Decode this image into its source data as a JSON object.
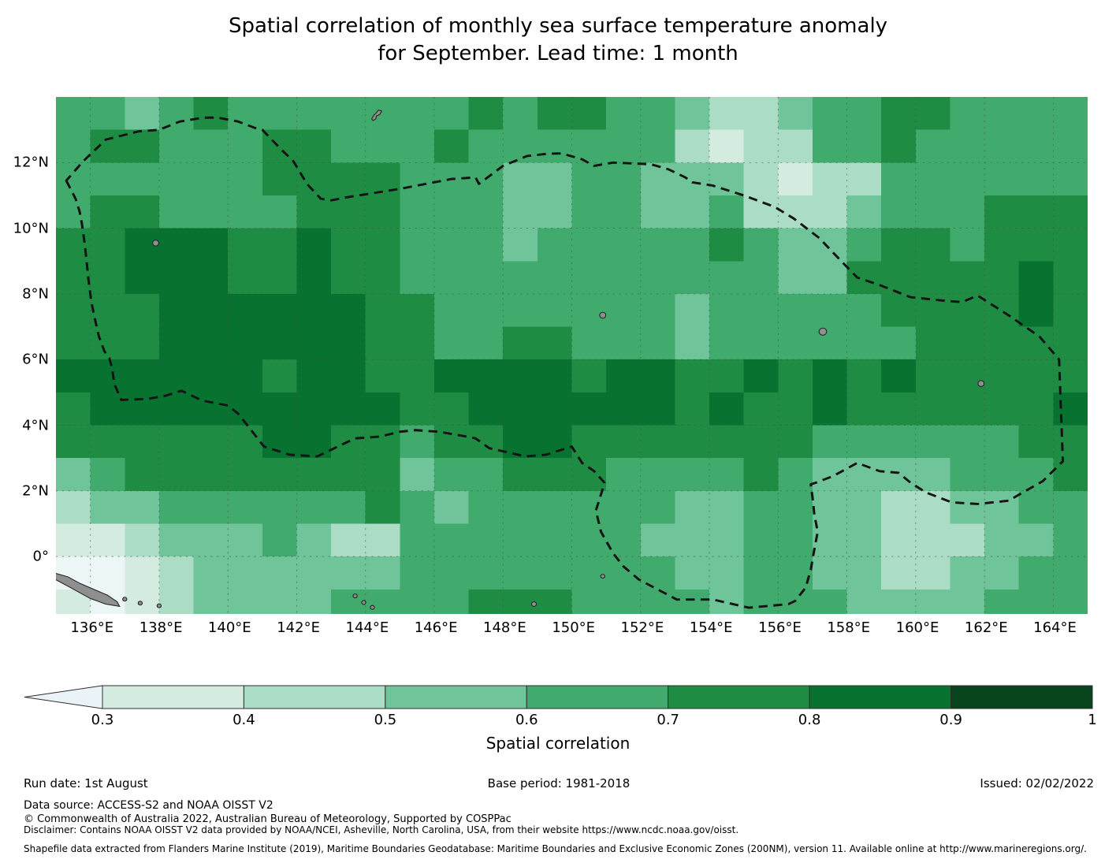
{
  "title": "Spatial correlation of monthly sea surface temperature anomaly\nfor September. Lead time: 1 month",
  "axes": {
    "x_ticks": [
      {
        "label": "136°E",
        "lon": 136
      },
      {
        "label": "138°E",
        "lon": 138
      },
      {
        "label": "140°E",
        "lon": 140
      },
      {
        "label": "142°E",
        "lon": 142
      },
      {
        "label": "144°E",
        "lon": 144
      },
      {
        "label": "146°E",
        "lon": 146
      },
      {
        "label": "148°E",
        "lon": 148
      },
      {
        "label": "150°E",
        "lon": 150
      },
      {
        "label": "152°E",
        "lon": 152
      },
      {
        "label": "154°E",
        "lon": 154
      },
      {
        "label": "156°E",
        "lon": 156
      },
      {
        "label": "158°E",
        "lon": 158
      },
      {
        "label": "160°E",
        "lon": 160
      },
      {
        "label": "162°E",
        "lon": 162
      },
      {
        "label": "164°E",
        "lon": 164
      }
    ],
    "y_ticks": [
      {
        "label": "12°N",
        "lat": 12
      },
      {
        "label": "10°N",
        "lat": 10
      },
      {
        "label": "8°N",
        "lat": 8
      },
      {
        "label": "6°N",
        "lat": 6
      },
      {
        "label": "4°N",
        "lat": 4
      },
      {
        "label": "2°N",
        "lat": 2
      },
      {
        "label": "0°",
        "lat": 0
      }
    ]
  },
  "colorbar": {
    "label": "Spatial correlation",
    "tick_labels": [
      "0.3",
      "0.4",
      "0.5",
      "0.6",
      "0.7",
      "0.8",
      "0.9",
      "1"
    ],
    "under_color": "#e9f3f8",
    "segment_colors": [
      "#d4ecdf",
      "#abdcc5",
      "#6fc49a",
      "#41ab6d",
      "#1f8c44",
      "#087331",
      "#07431d"
    ],
    "border_color": "#2f2f2f"
  },
  "footer": {
    "run_date": "Run date: 1st August",
    "base_period": "Base period: 1981-2018",
    "issued": "Issued: 02/02/2022",
    "data_source": "Data source: ACCESS-S2 and NOAA OISST V2",
    "copyright": "© Commonwealth of Australia 2022, Australian Bureau of Meteorology, Supported by COSPPac",
    "disclaimer": "Disclaimer: Contains NOAA OISST V2 data provided by NOAA/NCEI, Asheville, North Carolina, USA, from their website https://www.ncdc.noaa.gov/oisst.",
    "shapefile": "Shapefile data extracted from Flanders Marine Institute (2019), Maritime Boundaries Geodatabase: Maritime Boundaries and Exclusive Economic Zones (200NM), version 11. Available online at http://www.marineregions.org/."
  },
  "chart_data": {
    "type": "heatmap",
    "variable": "Spatial correlation of monthly sea surface temperature anomaly",
    "month": "September",
    "lead_time": "1 month",
    "lon_range": [
      135,
      165
    ],
    "lat_range": [
      -1.75,
      14
    ],
    "cell_deg": 1,
    "bins": {
      "2": "<0.3",
      "3": "0.3-0.4",
      "4": "0.4-0.5",
      "5": "0.5-0.6",
      "6": "0.6-0.7",
      "7": "0.7-0.8",
      "8": "0.8-0.9",
      "9": "0.9-1.0"
    },
    "bin_mid_values": {
      "2": 0.25,
      "3": 0.35,
      "4": 0.45,
      "5": 0.55,
      "6": 0.65,
      "7": 0.75,
      "8": 0.85,
      "9": 0.95
    },
    "palette": {
      "2": "#ecf6f7",
      "3": "#d4ecdf",
      "4": "#abdcc5",
      "5": "#6fc49a",
      "6": "#41ab6d",
      "7": "#1f8c44",
      "8": "#087331",
      "9": "#07431d"
    },
    "grid_row0_lat_center": 13.5,
    "grid_col0_lon_center": 135.5,
    "grid": [
      "665676666666767766 5445667766",
      "677666776667666666 4344667666",
      "666666777766655665 5543446666 66",
      "677666677766655665 5644456667 77",
      "778887787766656666 6765567767 77",
      "778887787766666666 6665577777 87",
      "777888888776666666 5666667777 87",
      "777888888776677666 5666666777 77",
      "888888788778888788 7787878777 7788",
      "788888888877888888 7877877777 78",
      "777777887767788777 7777666666 77",
      "567777777756677766 6676555566 67",
      "455666666765666666 5566554455 66",
      "334555654466666665 5566554445 56",
      "223455555566666666 5566554455 66",
      "323455556666777666 6566655556 66"
    ],
    "gridline_lons": [
      136,
      138,
      140,
      142,
      144,
      146,
      148,
      150,
      152,
      154,
      156,
      158,
      160,
      162,
      164
    ],
    "gridline_lats": [
      0,
      2,
      4,
      6,
      8,
      10,
      12
    ],
    "eez_boundary": [
      [
        135.3,
        11.45
      ],
      [
        135.57,
        10.9
      ],
      [
        135.69,
        10.5
      ],
      [
        135.76,
        10.1
      ],
      [
        135.84,
        9.5
      ],
      [
        135.9,
        8.9
      ],
      [
        135.95,
        8.4
      ],
      [
        136.03,
        7.75
      ],
      [
        136.14,
        7.2
      ],
      [
        136.25,
        6.7
      ],
      [
        136.41,
        6.25
      ],
      [
        136.55,
        6.05
      ],
      [
        136.63,
        5.75
      ],
      [
        136.7,
        5.25
      ],
      [
        136.9,
        4.77
      ],
      [
        137.65,
        4.8
      ],
      [
        138.2,
        4.9
      ],
      [
        138.65,
        5.05
      ],
      [
        139.25,
        4.75
      ],
      [
        140.0,
        4.6
      ],
      [
        140.3,
        4.35
      ],
      [
        140.9,
        3.55
      ],
      [
        141.05,
        3.35
      ],
      [
        141.8,
        3.1
      ],
      [
        142.6,
        3.05
      ],
      [
        143.7,
        3.6
      ],
      [
        144.4,
        3.65
      ],
      [
        145.0,
        3.8
      ],
      [
        145.45,
        3.85
      ],
      [
        146.15,
        3.8
      ],
      [
        146.95,
        3.65
      ],
      [
        147.2,
        3.6
      ],
      [
        147.6,
        3.3
      ],
      [
        148.65,
        3.05
      ],
      [
        149.25,
        3.1
      ],
      [
        150.0,
        3.35
      ],
      [
        150.3,
        2.85
      ],
      [
        150.65,
        2.6
      ],
      [
        150.95,
        2.25
      ],
      [
        150.87,
        1.96
      ],
      [
        150.7,
        1.4
      ],
      [
        150.85,
        0.75
      ],
      [
        151.2,
        0.1
      ],
      [
        151.5,
        -0.3
      ],
      [
        151.95,
        -0.7
      ],
      [
        152.4,
        -0.95
      ],
      [
        153.05,
        -1.31
      ],
      [
        154.1,
        -1.31
      ],
      [
        155.15,
        -1.56
      ],
      [
        156.3,
        -1.45
      ],
      [
        156.5,
        -1.35
      ],
      [
        156.8,
        -0.95
      ],
      [
        156.95,
        -0.4
      ],
      [
        157.05,
        0.2
      ],
      [
        157.15,
        0.75
      ],
      [
        157.05,
        1.3
      ],
      [
        157.0,
        1.8
      ],
      [
        156.95,
        2.2
      ],
      [
        157.1,
        2.25
      ],
      [
        157.6,
        2.45
      ],
      [
        158.3,
        2.85
      ],
      [
        158.95,
        2.6
      ],
      [
        159.5,
        2.55
      ],
      [
        159.85,
        2.25
      ],
      [
        160.3,
        1.95
      ],
      [
        161.05,
        1.65
      ],
      [
        161.8,
        1.6
      ],
      [
        162.7,
        1.7
      ],
      [
        163.7,
        2.3
      ],
      [
        164.28,
        2.9
      ],
      [
        164.17,
        6.0
      ],
      [
        163.6,
        6.7
      ],
      [
        162.7,
        7.35
      ],
      [
        161.8,
        7.95
      ],
      [
        161.35,
        7.75
      ],
      [
        160.75,
        7.8
      ],
      [
        159.85,
        7.9
      ],
      [
        159.0,
        8.25
      ],
      [
        158.3,
        8.5
      ],
      [
        157.65,
        9.2
      ],
      [
        157.2,
        9.7
      ],
      [
        156.45,
        10.3
      ],
      [
        155.9,
        10.65
      ],
      [
        155.0,
        11.0
      ],
      [
        154.1,
        11.3
      ],
      [
        153.5,
        11.4
      ],
      [
        153.3,
        11.55
      ],
      [
        152.8,
        11.8
      ],
      [
        152.3,
        11.95
      ],
      [
        151.2,
        12.0
      ],
      [
        150.65,
        11.9
      ],
      [
        150.3,
        12.1
      ],
      [
        149.7,
        12.28
      ],
      [
        149.3,
        12.27
      ],
      [
        148.7,
        12.2
      ],
      [
        148.0,
        11.9
      ],
      [
        147.3,
        11.35
      ],
      [
        147.2,
        11.55
      ],
      [
        146.5,
        11.5
      ],
      [
        145.0,
        11.2
      ],
      [
        143.5,
        10.95
      ],
      [
        143.0,
        10.85
      ],
      [
        142.7,
        10.9
      ],
      [
        142.3,
        11.35
      ],
      [
        141.9,
        12.05
      ],
      [
        141.55,
        12.4
      ],
      [
        141.0,
        13.0
      ],
      [
        140.8,
        13.05
      ],
      [
        140.3,
        13.25
      ],
      [
        139.7,
        13.37
      ],
      [
        139.3,
        13.37
      ],
      [
        138.6,
        13.25
      ],
      [
        138.0,
        13.0
      ],
      [
        137.4,
        12.95
      ],
      [
        136.45,
        12.7
      ],
      [
        135.8,
        12.05
      ]
    ],
    "islands": {
      "land_color": "#8f8f8f",
      "outline_color": "#222222",
      "dots": [
        {
          "name": "yap",
          "lon": 137.9,
          "lat": 9.55,
          "r": 0.09
        },
        {
          "name": "chuuk",
          "lon": 150.9,
          "lat": 7.35,
          "r": 0.09
        },
        {
          "name": "pohnpei",
          "lon": 157.3,
          "lat": 6.85,
          "r": 0.11
        },
        {
          "name": "kosrae",
          "lon": 161.9,
          "lat": 5.27,
          "r": 0.09
        },
        {
          "name": "islet",
          "lon": 137.0,
          "lat": -1.3,
          "r": 0.06
        },
        {
          "name": "islet",
          "lon": 137.45,
          "lat": -1.42,
          "r": 0.06
        },
        {
          "name": "islet",
          "lon": 138.0,
          "lat": -1.5,
          "r": 0.06
        },
        {
          "name": "islet",
          "lon": 143.7,
          "lat": -1.2,
          "r": 0.06
        },
        {
          "name": "islet",
          "lon": 143.95,
          "lat": -1.4,
          "r": 0.06
        },
        {
          "name": "islet",
          "lon": 144.2,
          "lat": -1.55,
          "r": 0.06
        },
        {
          "name": "islet",
          "lon": 148.9,
          "lat": -1.45,
          "r": 0.07
        },
        {
          "name": "islet",
          "lon": 150.9,
          "lat": -0.6,
          "r": 0.06
        }
      ],
      "shapes": [
        {
          "name": "guam",
          "points": [
            [
              144.22,
              13.28
            ],
            [
              144.3,
              13.33
            ],
            [
              144.32,
              13.42
            ],
            [
              144.42,
              13.47
            ],
            [
              144.47,
              13.57
            ],
            [
              144.38,
              13.6
            ],
            [
              144.3,
              13.5
            ],
            [
              144.24,
              13.44
            ],
            [
              144.18,
              13.33
            ]
          ]
        },
        {
          "name": "new-guinea-coast",
          "points": [
            [
              134.95,
              -0.5
            ],
            [
              135.35,
              -0.62
            ],
            [
              135.7,
              -0.82
            ],
            [
              136.1,
              -1.0
            ],
            [
              136.5,
              -1.18
            ],
            [
              136.78,
              -1.38
            ],
            [
              136.85,
              -1.52
            ],
            [
              136.45,
              -1.45
            ],
            [
              136.0,
              -1.28
            ],
            [
              135.6,
              -1.05
            ],
            [
              135.2,
              -0.82
            ],
            [
              134.95,
              -0.68
            ]
          ]
        }
      ]
    },
    "grid_on": true,
    "legend_position": "bottom-colorbar"
  }
}
